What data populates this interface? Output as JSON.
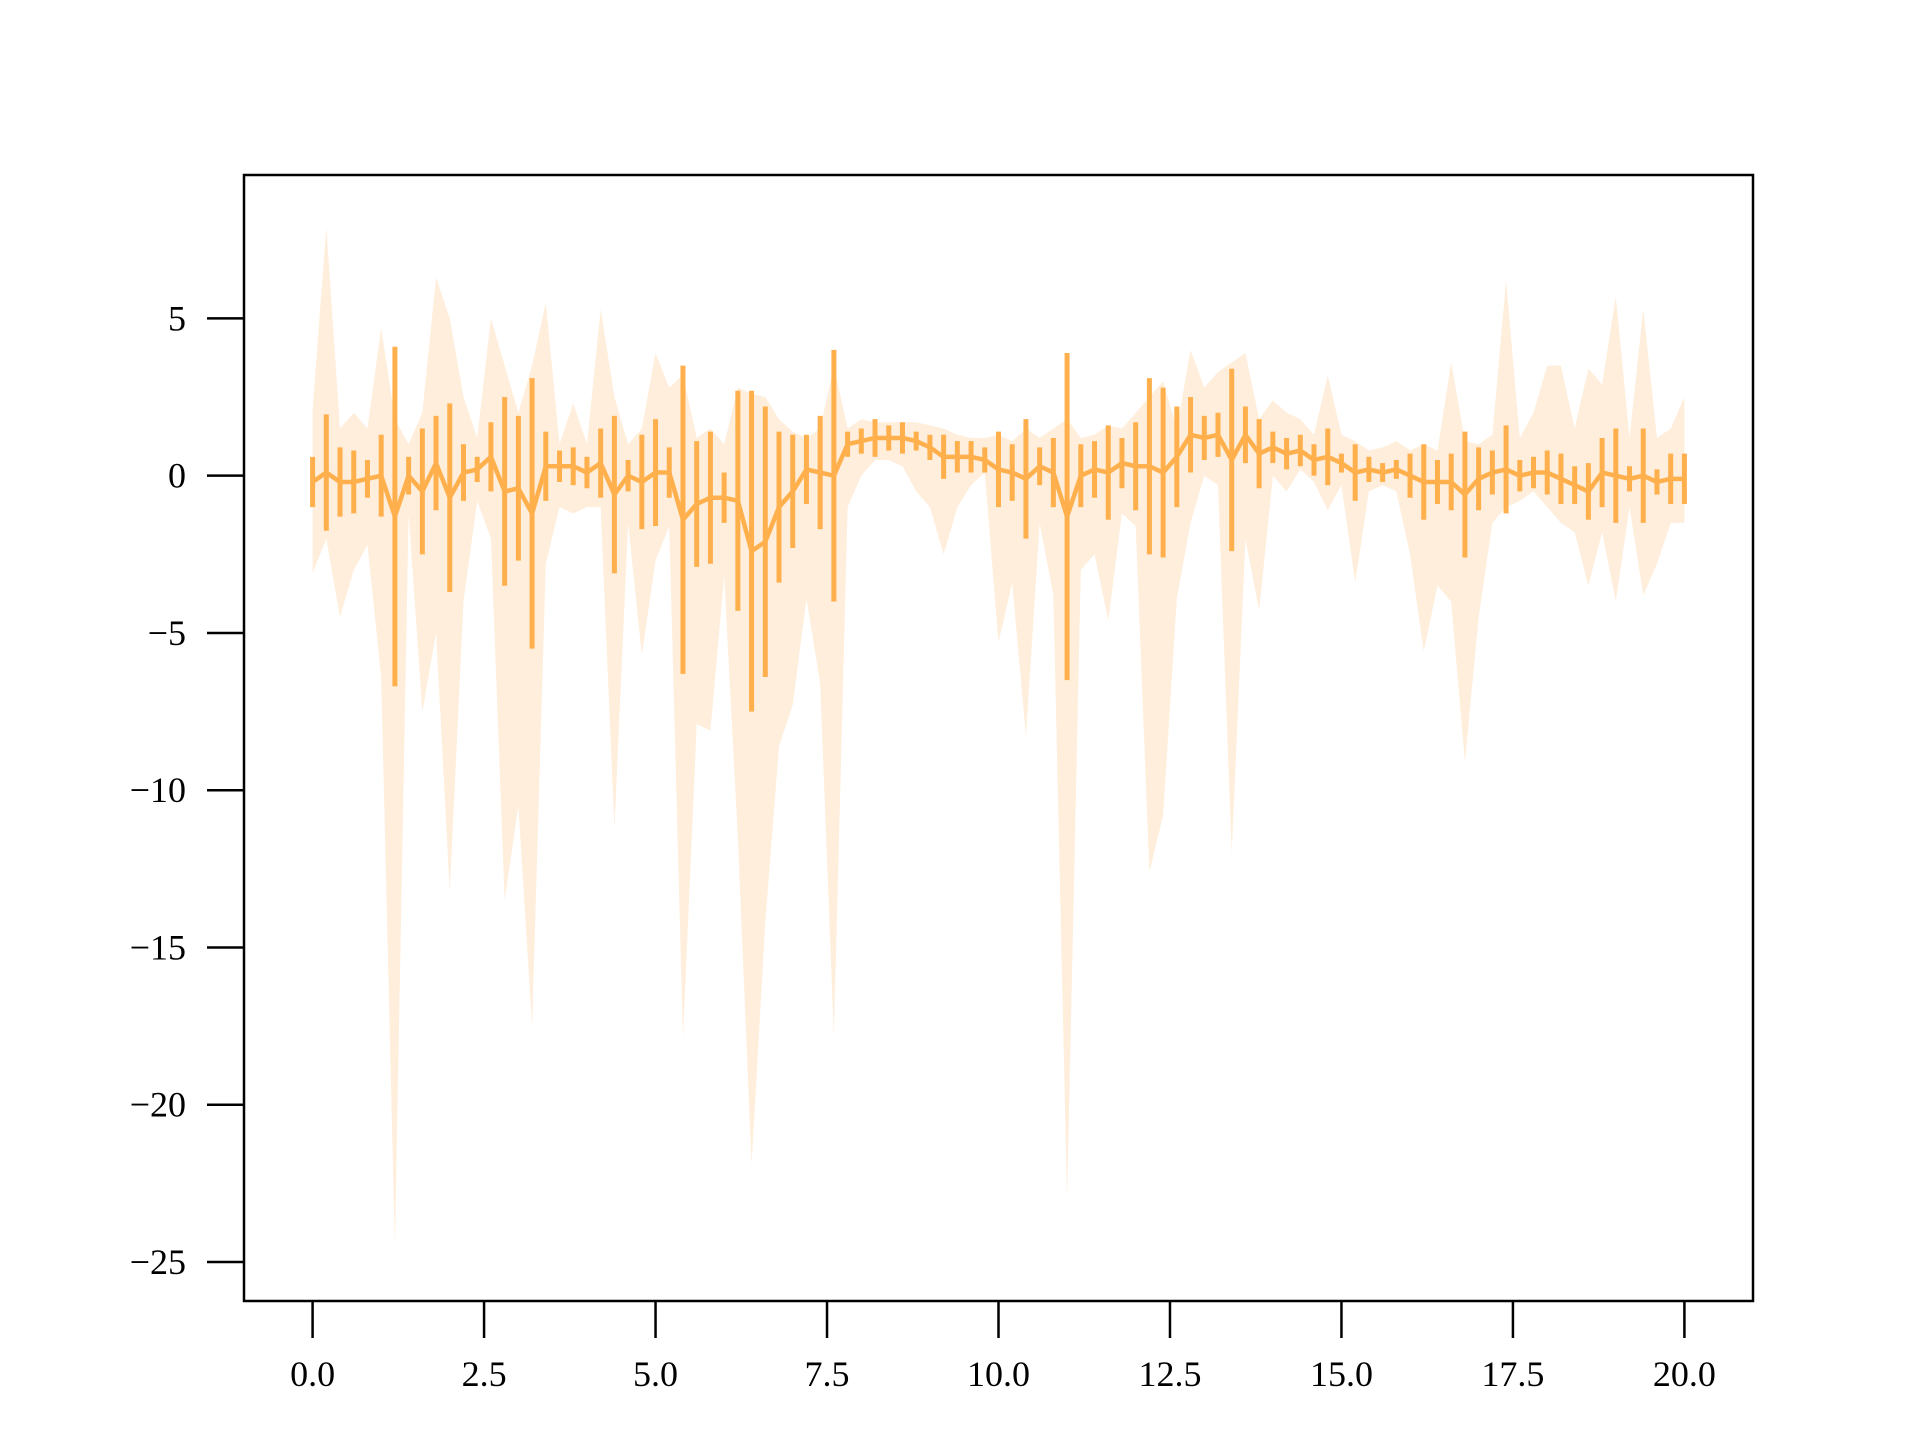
{
  "chart_data": {
    "type": "line_errorbar_band",
    "x": [
      0,
      0.2,
      0.4,
      0.6,
      0.8,
      1,
      1.2,
      1.4,
      1.6,
      1.8,
      2,
      2.2,
      2.4,
      2.6,
      2.8,
      3,
      3.2,
      3.4,
      3.6,
      3.8,
      4,
      4.2,
      4.4,
      4.6,
      4.8,
      5,
      5.2,
      5.4,
      5.6,
      5.8,
      6,
      6.2,
      6.4,
      6.6,
      6.8,
      7,
      7.2,
      7.4,
      7.6,
      7.8,
      8,
      8.2,
      8.4,
      8.6,
      8.8,
      9,
      9.2,
      9.4,
      9.6,
      9.8,
      10,
      10.2,
      10.4,
      10.6,
      10.8,
      11,
      11.2,
      11.4,
      11.6,
      11.8,
      12,
      12.2,
      12.4,
      12.6,
      12.8,
      13,
      13.2,
      13.4,
      13.6,
      13.8,
      14,
      14.2,
      14.4,
      14.6,
      14.8,
      15,
      15.2,
      15.4,
      15.6,
      15.8,
      16,
      16.2,
      16.4,
      16.6,
      16.8,
      17,
      17.2,
      17.4,
      17.6,
      17.8,
      18,
      18.2,
      18.4,
      18.6,
      18.8,
      19,
      19.2,
      19.4,
      19.6,
      19.8,
      20
    ],
    "series": [
      {
        "color": "#ffb04d",
        "band_color": "#ffeedb",
        "values": [
          -0.2,
          0.1,
          -0.2,
          -0.2,
          -0.1,
          0,
          -1.3,
          0,
          -0.5,
          0.4,
          -0.7,
          0.1,
          0.2,
          0.6,
          -0.5,
          -0.4,
          -1.2,
          0.3,
          0.3,
          0.3,
          0.1,
          0.4,
          -0.6,
          0,
          -0.2,
          0.1,
          0.1,
          -1.4,
          -0.9,
          -0.7,
          -0.7,
          -0.8,
          -2.4,
          -2.1,
          -1,
          -0.5,
          0.2,
          0.1,
          0,
          1,
          1.1,
          1.2,
          1.2,
          1.2,
          1.1,
          0.9,
          0.6,
          0.6,
          0.6,
          0.5,
          0.2,
          0.1,
          -0.1,
          0.3,
          0.1,
          -1.3,
          0,
          0.2,
          0.1,
          0.4,
          0.3,
          0.3,
          0.1,
          0.6,
          1.3,
          1.2,
          1.3,
          0.5,
          1.3,
          0.7,
          0.9,
          0.7,
          0.8,
          0.5,
          0.6,
          0.4,
          0.1,
          0.2,
          0.1,
          0.2,
          0,
          -0.2,
          -0.2,
          -0.2,
          -0.6,
          -0.1,
          0.1,
          0.2,
          0,
          0.1,
          0.1,
          -0.1,
          -0.3,
          -0.5,
          0.1,
          0,
          -0.1,
          0,
          -0.2,
          -0.1,
          -0.1
        ],
        "errors": [
          0.8,
          1.85,
          1.1,
          1,
          0.6,
          1.3,
          5.4,
          0.6,
          2,
          1.5,
          3,
          0.9,
          0.4,
          1.1,
          3,
          2.3,
          4.3,
          1.1,
          0.5,
          0.6,
          0.5,
          1.1,
          2.5,
          0.5,
          1.5,
          1.7,
          0.8,
          4.9,
          2,
          2.1,
          0.8,
          3.5,
          5.1,
          4.3,
          2.4,
          1.8,
          1.1,
          1.8,
          4,
          0.4,
          0.4,
          0.6,
          0.4,
          0.5,
          0.3,
          0.4,
          0.7,
          0.5,
          0.5,
          0.4,
          1.2,
          0.9,
          1.9,
          0.6,
          1.1,
          5.2,
          1,
          0.9,
          1.5,
          0.8,
          1.4,
          2.8,
          2.7,
          1.6,
          1.2,
          0.7,
          0.7,
          2.9,
          0.9,
          1.1,
          0.5,
          0.5,
          0.5,
          0.5,
          0.9,
          0.3,
          0.9,
          0.4,
          0.3,
          0.3,
          0.7,
          1.2,
          0.7,
          0.9,
          2,
          1,
          0.7,
          1.4,
          0.5,
          0.5,
          0.7,
          0.8,
          0.6,
          0.9,
          1.1,
          1.5,
          0.4,
          1.5,
          0.4,
          0.8,
          0.8
        ],
        "band_upper": [
          2.1,
          7.9,
          1.5,
          2,
          1.5,
          4.7,
          1.8,
          1,
          2,
          6.3,
          5,
          2.5,
          1.2,
          5,
          3.5,
          2,
          3.5,
          5.5,
          1,
          2.3,
          1,
          5.3,
          2.5,
          1,
          1.5,
          3.9,
          2.8,
          3.2,
          1.2,
          1.5,
          1,
          2.8,
          2.6,
          2.5,
          1.8,
          1.4,
          1.2,
          1.5,
          3.5,
          1.5,
          1.8,
          1.7,
          1.7,
          1.7,
          1.7,
          1.6,
          1.5,
          1.3,
          1.2,
          1.2,
          1.3,
          1.1,
          1.5,
          1.2,
          1.5,
          1.8,
          1.2,
          1.3,
          1.6,
          1.5,
          2,
          2.5,
          3,
          1.5,
          4,
          2.8,
          3.3,
          3.6,
          3.9,
          1.8,
          2.4,
          2,
          1.8,
          1.3,
          3.2,
          1.3,
          1.1,
          0.8,
          0.9,
          1.1,
          0.8,
          1,
          0.8,
          3.6,
          1.1,
          1,
          1.3,
          6.2,
          1.2,
          2,
          3.5,
          3.5,
          1.5,
          3.4,
          2.9,
          5.7,
          1.2,
          5.3,
          1.2,
          1.5,
          2.5
        ],
        "band_lower": [
          -3.1,
          -2,
          -4.5,
          -3,
          -2.2,
          -6.4,
          -24.5,
          -1.2,
          -7.5,
          -5,
          -13.2,
          -4,
          -0.8,
          -2,
          -13.5,
          -10.5,
          -17.5,
          -2.8,
          -1,
          -1.2,
          -1,
          -1,
          -11.2,
          -1.5,
          -5.7,
          -2.7,
          -1.6,
          -17.9,
          -7.9,
          -8.1,
          -3.2,
          -11.5,
          -21.9,
          -14.2,
          -8.6,
          -7.3,
          -3.9,
          -6.6,
          -17.8,
          -1,
          0,
          0.5,
          0.5,
          0.3,
          -0.5,
          -1,
          -2.5,
          -1,
          -0.3,
          0.1,
          -5.3,
          -3.4,
          -8.3,
          -1.5,
          -3.8,
          -23,
          -3,
          -2.5,
          -4.6,
          -1.2,
          -1.6,
          -12.6,
          -10.8,
          -3.9,
          -1.5,
          0,
          -0.3,
          -12,
          -2,
          -4.3,
          0,
          -0.5,
          0.2,
          -0.2,
          -1.1,
          -0.3,
          -3.4,
          -0.5,
          -0.3,
          -0.5,
          -2.5,
          -5.6,
          -3.5,
          -4,
          -9.1,
          -4.5,
          -1.5,
          -1,
          -0.8,
          -0.5,
          -1,
          -1.5,
          -1.8,
          -3.5,
          -1.8,
          -4,
          -1,
          -3.8,
          -2.8,
          -1.5,
          -1.5
        ]
      }
    ],
    "xlim": [
      -1,
      21
    ],
    "ylim": [
      -26.24,
      9.56
    ],
    "xticks": [
      {
        "value": 0,
        "label": "0.0"
      },
      2.5,
      {
        "value": 5,
        "label": "5.0"
      },
      7.5,
      {
        "value": 10,
        "label": "10.0"
      },
      12.5,
      {
        "value": 15,
        "label": "15.0"
      },
      17.5,
      {
        "value": 20,
        "label": "20.0"
      }
    ],
    "yticks": [
      {
        "value": -25,
        "label": "−25"
      },
      {
        "value": -20,
        "label": "−20"
      },
      {
        "value": -15,
        "label": "−15"
      },
      {
        "value": -10,
        "label": "−10"
      },
      {
        "value": -5,
        "label": "−5"
      },
      0,
      5
    ]
  }
}
